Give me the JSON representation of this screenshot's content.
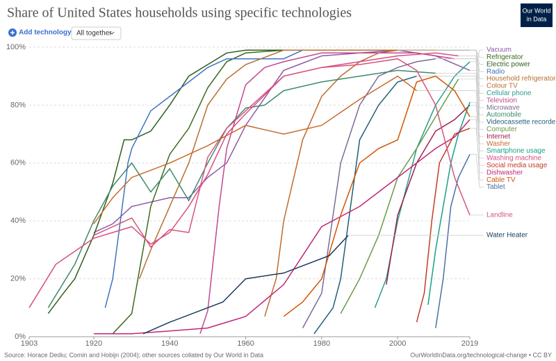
{
  "header": {
    "add_button": "Add technology",
    "dropdown": "All together",
    "logo": [
      "Our World",
      "in Data"
    ]
  },
  "footer": {
    "source": "Source: Horace Dediu; Comin and Hobijn (2004); other sources collated by Our World in Data",
    "url": "OurWorldInData.org/technological-change • CC BY"
  },
  "chart_data": {
    "type": "line",
    "title": "Share of United States households using specific technologies",
    "xlim": [
      1903,
      2019
    ],
    "xticks": [
      1903,
      1920,
      1940,
      1960,
      1980,
      2000,
      2019
    ],
    "ylim": [
      0,
      100
    ],
    "yticks": [
      {
        "value": 0,
        "label": "0%"
      },
      {
        "value": 20,
        "label": "20%"
      },
      {
        "value": 40,
        "label": "40%"
      },
      {
        "value": 60,
        "label": "60%"
      },
      {
        "value": 80,
        "label": "80%"
      },
      {
        "value": 100,
        "label": "100%"
      }
    ],
    "grid": true,
    "series": [
      {
        "name": "Vacuum",
        "color": "#8f57a8",
        "x": [
          1920,
          1925,
          1930,
          1940,
          1945,
          1950,
          1955,
          1960,
          1970,
          1980,
          1990,
          2000,
          2010,
          2019
        ],
        "values": [
          36,
          39,
          45,
          48,
          48,
          55,
          60,
          73,
          92,
          97,
          98,
          99,
          97,
          92
        ]
      },
      {
        "name": "Refrigerator",
        "color": "#3d6a1e",
        "x": [
          1925,
          1930,
          1935,
          1940,
          1945,
          1950,
          1955,
          1960,
          1970,
          1980,
          1990,
          2000,
          2019
        ],
        "values": [
          1,
          8,
          45,
          63,
          72,
          86,
          95,
          98,
          99,
          99,
          99,
          99,
          99
        ]
      },
      {
        "name": "Electric power",
        "color": "#2e5d1a",
        "x": [
          1908,
          1912,
          1915,
          1920,
          1925,
          1928,
          1930,
          1935,
          1940,
          1945,
          1950,
          1955,
          1960,
          1975
        ],
        "values": [
          8,
          15,
          20,
          35,
          53,
          68,
          68,
          71,
          80,
          90,
          94,
          98,
          99,
          99
        ]
      },
      {
        "name": "Radio",
        "color": "#3d73c2",
        "x": [
          1923,
          1925,
          1927,
          1929,
          1930,
          1935,
          1940,
          1945,
          1950,
          1955,
          1960,
          1970,
          1975
        ],
        "values": [
          10,
          20,
          40,
          60,
          65,
          78,
          83,
          88,
          93,
          96,
          96,
          96,
          99
        ]
      },
      {
        "name": "Household refrigerator",
        "color": "#b5702f",
        "x": [
          1932,
          1935,
          1940,
          1945,
          1950,
          1955,
          1960,
          1970,
          1980,
          1990,
          2000,
          2010
        ],
        "values": [
          20,
          30,
          45,
          60,
          80,
          89,
          94,
          99,
          99,
          99,
          99,
          99
        ]
      },
      {
        "name": "Colour TV",
        "color": "#c06a2b",
        "x": [
          1965,
          1968,
          1970,
          1975,
          1980,
          1985,
          1990,
          1995,
          2000
        ],
        "values": [
          7,
          20,
          40,
          68,
          83,
          90,
          95,
          98,
          99
        ]
      },
      {
        "name": "Cellular phone",
        "color": "#2a9d8f",
        "x": [
          1994,
          1997,
          2000,
          2005,
          2010,
          2015,
          2019
        ],
        "values": [
          10,
          20,
          40,
          65,
          80,
          90,
          95
        ]
      },
      {
        "name": "Television",
        "color": "#c2478f",
        "x": [
          1948,
          1950,
          1953,
          1955,
          1960,
          1965,
          1970,
          1980,
          1990,
          2000,
          2005,
          2010,
          2015
        ],
        "values": [
          1,
          9,
          45,
          65,
          87,
          93,
          95,
          98,
          98,
          98,
          98,
          97,
          96
        ]
      },
      {
        "name": "Microwave",
        "color": "#7a6a9a",
        "x": [
          1975,
          1980,
          1985,
          1990,
          1995,
          2000,
          2005,
          2010
        ],
        "values": [
          3,
          15,
          60,
          80,
          90,
          93,
          95,
          96
        ]
      },
      {
        "name": "Automobile",
        "color": "#3c8a6a",
        "x": [
          1908,
          1915,
          1920,
          1925,
          1930,
          1935,
          1940,
          1945,
          1950,
          1955,
          1960,
          1965,
          1970,
          1980,
          1990,
          2000,
          2010
        ],
        "values": [
          10,
          25,
          40,
          52,
          60,
          50,
          58,
          47,
          60,
          72,
          79,
          80,
          85,
          88,
          90,
          92,
          91
        ]
      },
      {
        "name": "Videocassette recorder",
        "color": "#1f5e79",
        "x": [
          1978,
          1983,
          1985,
          1990,
          1995,
          2000,
          2005
        ],
        "values": [
          1,
          10,
          20,
          68,
          80,
          88,
          90
        ]
      },
      {
        "name": "Computer",
        "color": "#6a9a4a",
        "x": [
          1985,
          1990,
          1995,
          2000,
          2005,
          2010,
          2016
        ],
        "values": [
          8,
          20,
          35,
          55,
          65,
          76,
          89
        ]
      },
      {
        "name": "Internet",
        "color": "#9b1f4d",
        "x": [
          1997,
          2000,
          2005,
          2010,
          2015,
          2019
        ],
        "values": [
          18,
          42,
          60,
          71,
          75,
          80
        ]
      },
      {
        "name": "Washer",
        "color": "#c96b2c",
        "x": [
          1920,
          1925,
          1930,
          1940,
          1950,
          1960,
          1970,
          1980,
          1990,
          2000,
          2005
        ],
        "values": [
          39,
          48,
          55,
          60,
          66,
          73,
          70,
          73,
          82,
          90,
          85
        ]
      },
      {
        "name": "Smartphone usage",
        "color": "#16a085",
        "x": [
          2008,
          2010,
          2012,
          2014,
          2016,
          2019
        ],
        "values": [
          11,
          30,
          45,
          60,
          70,
          81
        ]
      },
      {
        "name": "Washing machine",
        "color": "#d64e86",
        "x": [
          1903,
          1910,
          1920,
          1925,
          1930,
          1935,
          1940,
          1945,
          1950,
          1955,
          1960,
          1970,
          1980,
          1990,
          2000,
          2010,
          2016
        ],
        "values": [
          10,
          25,
          34,
          36,
          38,
          32,
          36,
          45,
          56,
          70,
          77,
          90,
          93,
          95,
          97,
          98,
          97
        ]
      },
      {
        "name": "Social media usage",
        "color": "#c23b22",
        "x": [
          2005,
          2007,
          2009,
          2011,
          2013,
          2015,
          2019
        ],
        "values": [
          5,
          15,
          40,
          60,
          65,
          70,
          72
        ]
      },
      {
        "name": "Dishwasher",
        "color": "#c0267a",
        "x": [
          1920,
          1930,
          1940,
          1950,
          1955,
          1960,
          1970,
          1975,
          1980,
          1990,
          2000,
          2010,
          2015,
          2019
        ],
        "values": [
          1,
          1,
          2,
          3,
          5,
          7,
          18,
          28,
          38,
          45,
          55,
          65,
          69,
          75
        ]
      },
      {
        "name": "Cable TV",
        "color": "#d35400",
        "x": [
          1970,
          1975,
          1980,
          1985,
          1990,
          1995,
          2000,
          2005,
          2010,
          2015,
          2019
        ],
        "values": [
          7,
          12,
          20,
          42,
          60,
          65,
          68,
          88,
          90,
          85,
          76
        ]
      },
      {
        "name": "Tablet",
        "color": "#4a6fa5",
        "x": [
          2010,
          2012,
          2014,
          2016,
          2019
        ],
        "values": [
          3,
          20,
          45,
          55,
          63
        ]
      },
      {
        "name": "Landline",
        "color": "#d6547a",
        "x": [
          1920,
          1930,
          1935,
          1940,
          1945,
          1950,
          1955,
          1960,
          1970,
          1980,
          1990,
          2000,
          2005,
          2010,
          2015,
          2019
        ],
        "values": [
          35,
          41,
          31,
          37,
          36,
          62,
          72,
          78,
          90,
          93,
          94,
          96,
          92,
          80,
          55,
          42
        ]
      },
      {
        "name": "Water Heater",
        "color": "#1a3a5c",
        "x": [
          1933,
          1940,
          1954,
          1960,
          1970,
          1982,
          1987
        ],
        "values": [
          1,
          5,
          12,
          20,
          22,
          28,
          35
        ]
      }
    ]
  }
}
